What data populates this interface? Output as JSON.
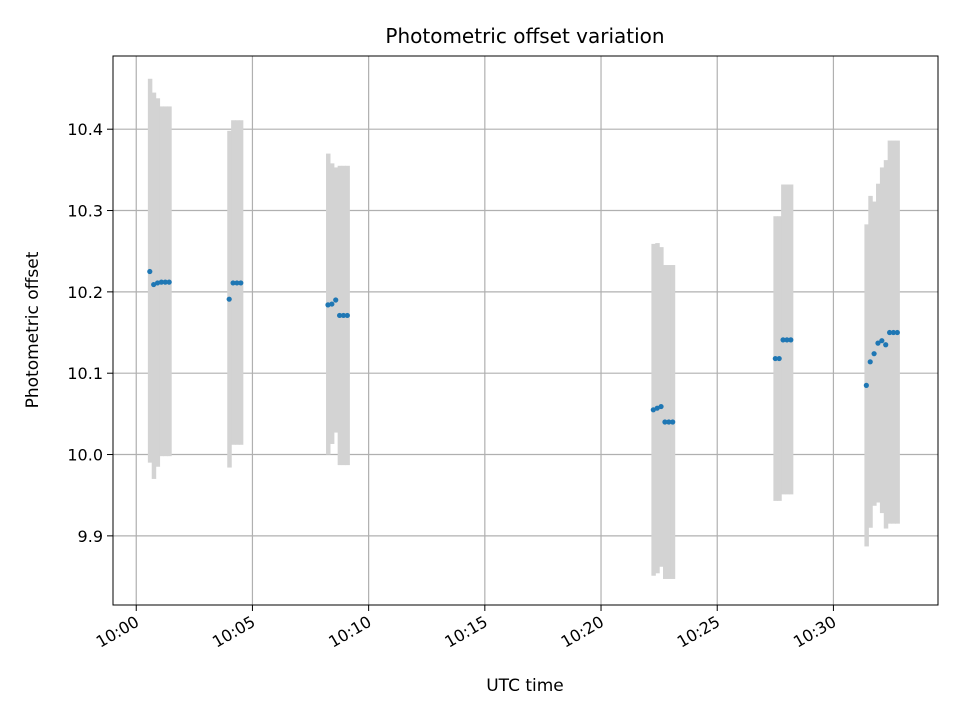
{
  "chart_data": {
    "type": "scatter",
    "title": "Photometric offset variation",
    "xlabel": "UTC time",
    "ylabel": "Photometric offset",
    "x_tick_labels": [
      "10:00",
      "10:05",
      "10:10",
      "10:15",
      "10:20",
      "10:25",
      "10:30"
    ],
    "y_tick_labels": [
      "9.9",
      "10.0",
      "10.1",
      "10.2",
      "10.3",
      "10.4"
    ],
    "y_ticks": [
      9.9,
      10.0,
      10.1,
      10.2,
      10.3,
      10.4
    ],
    "xlim": [
      "09:59:00",
      "10:34:30"
    ],
    "ylim": [
      9.815,
      10.49
    ],
    "grid": true,
    "legend": "none",
    "series": [
      {
        "color": "#1f77b4",
        "band_color": "#d3d3d3",
        "points": [
          {
            "x": "10:00:35",
            "y": 10.225,
            "lo": 9.99,
            "hi": 10.462
          },
          {
            "x": "10:00:45",
            "y": 10.209,
            "lo": 9.97,
            "hi": 10.445
          },
          {
            "x": "10:00:55",
            "y": 10.211,
            "lo": 9.985,
            "hi": 10.438
          },
          {
            "x": "10:01:05",
            "y": 10.212,
            "lo": 9.998,
            "hi": 10.428
          },
          {
            "x": "10:01:15",
            "y": 10.212,
            "lo": 9.998,
            "hi": 10.428
          },
          {
            "x": "10:01:25",
            "y": 10.212,
            "lo": 9.998,
            "hi": 10.428
          },
          {
            "x": "10:04:00",
            "y": 10.191,
            "lo": 9.984,
            "hi": 10.398
          },
          {
            "x": "10:04:10",
            "y": 10.211,
            "lo": 10.012,
            "hi": 10.411
          },
          {
            "x": "10:04:20",
            "y": 10.211,
            "lo": 10.012,
            "hi": 10.411
          },
          {
            "x": "10:04:30",
            "y": 10.211,
            "lo": 10.012,
            "hi": 10.411
          },
          {
            "x": "10:08:15",
            "y": 10.184,
            "lo": 10.0,
            "hi": 10.37
          },
          {
            "x": "10:08:25",
            "y": 10.185,
            "lo": 10.013,
            "hi": 10.358
          },
          {
            "x": "10:08:35",
            "y": 10.19,
            "lo": 10.027,
            "hi": 10.353
          },
          {
            "x": "10:08:45",
            "y": 10.171,
            "lo": 9.987,
            "hi": 10.355
          },
          {
            "x": "10:08:55",
            "y": 10.171,
            "lo": 9.987,
            "hi": 10.355
          },
          {
            "x": "10:09:05",
            "y": 10.171,
            "lo": 9.987,
            "hi": 10.355
          },
          {
            "x": "10:22:15",
            "y": 10.055,
            "lo": 9.851,
            "hi": 10.259
          },
          {
            "x": "10:22:25",
            "y": 10.057,
            "lo": 9.854,
            "hi": 10.26
          },
          {
            "x": "10:22:35",
            "y": 10.059,
            "lo": 9.862,
            "hi": 10.255
          },
          {
            "x": "10:22:45",
            "y": 10.04,
            "lo": 9.847,
            "hi": 10.233
          },
          {
            "x": "10:22:55",
            "y": 10.04,
            "lo": 9.847,
            "hi": 10.233
          },
          {
            "x": "10:23:05",
            "y": 10.04,
            "lo": 9.847,
            "hi": 10.233
          },
          {
            "x": "10:27:30",
            "y": 10.118,
            "lo": 9.943,
            "hi": 10.293
          },
          {
            "x": "10:27:40",
            "y": 10.118,
            "lo": 9.943,
            "hi": 10.293
          },
          {
            "x": "10:27:50",
            "y": 10.141,
            "lo": 9.951,
            "hi": 10.332
          },
          {
            "x": "10:28:00",
            "y": 10.141,
            "lo": 9.951,
            "hi": 10.332
          },
          {
            "x": "10:28:10",
            "y": 10.141,
            "lo": 9.951,
            "hi": 10.332
          },
          {
            "x": "10:31:25",
            "y": 10.085,
            "lo": 9.887,
            "hi": 10.283
          },
          {
            "x": "10:31:35",
            "y": 10.114,
            "lo": 9.91,
            "hi": 10.318
          },
          {
            "x": "10:31:45",
            "y": 10.124,
            "lo": 9.937,
            "hi": 10.311
          },
          {
            "x": "10:31:55",
            "y": 10.137,
            "lo": 9.941,
            "hi": 10.333
          },
          {
            "x": "10:32:05",
            "y": 10.14,
            "lo": 9.928,
            "hi": 10.353
          },
          {
            "x": "10:32:15",
            "y": 10.135,
            "lo": 9.909,
            "hi": 10.362
          },
          {
            "x": "10:32:25",
            "y": 10.15,
            "lo": 9.915,
            "hi": 10.386
          },
          {
            "x": "10:32:35",
            "y": 10.15,
            "lo": 9.915,
            "hi": 10.386
          },
          {
            "x": "10:32:45",
            "y": 10.15,
            "lo": 9.915,
            "hi": 10.386
          }
        ]
      }
    ]
  }
}
